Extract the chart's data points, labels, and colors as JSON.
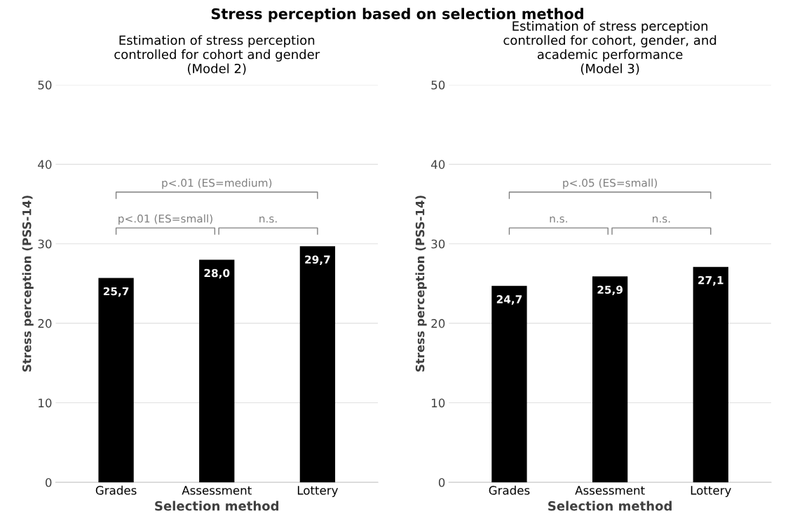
{
  "chart_data": [
    {
      "type": "bar",
      "title": "Stress perception based on selection method",
      "subtitle": "Estimation of stress perception\ncontrolled for cohort and gender\n(Model 2)",
      "xlabel": "Selection method",
      "ylabel": "Stress perception (PSS-14)",
      "categories": [
        "Grades",
        "Assessment",
        "Lottery"
      ],
      "values": [
        25.7,
        28.0,
        29.7
      ],
      "value_labels": [
        "25,7",
        "28,0",
        "29,7"
      ],
      "color": "#000000",
      "ylim": [
        0,
        50
      ],
      "yticks": [
        0,
        10,
        20,
        30,
        40,
        50
      ],
      "grid": "y",
      "annotations": [
        "p<.01 (ES=medium)",
        "p<.01 (ES=small)",
        "n.s."
      ]
    },
    {
      "type": "bar",
      "subtitle": "Estimation of stress perception\ncontrolled for cohort, gender, and\nacademic performance\n(Model 3)",
      "xlabel": "Selection method",
      "ylabel": "Stress perception (PSS-14)",
      "categories": [
        "Grades",
        "Assessment",
        "Lottery"
      ],
      "values": [
        24.7,
        25.9,
        27.1
      ],
      "value_labels": [
        "24,7",
        "25,9",
        "27,1"
      ],
      "color": "#000000",
      "ylim": [
        0,
        50
      ],
      "yticks": [
        0,
        10,
        20,
        30,
        40,
        50
      ],
      "grid": "y",
      "annotations": [
        "p<.05 (ES=small)",
        "n.s.",
        "n.s."
      ]
    }
  ]
}
